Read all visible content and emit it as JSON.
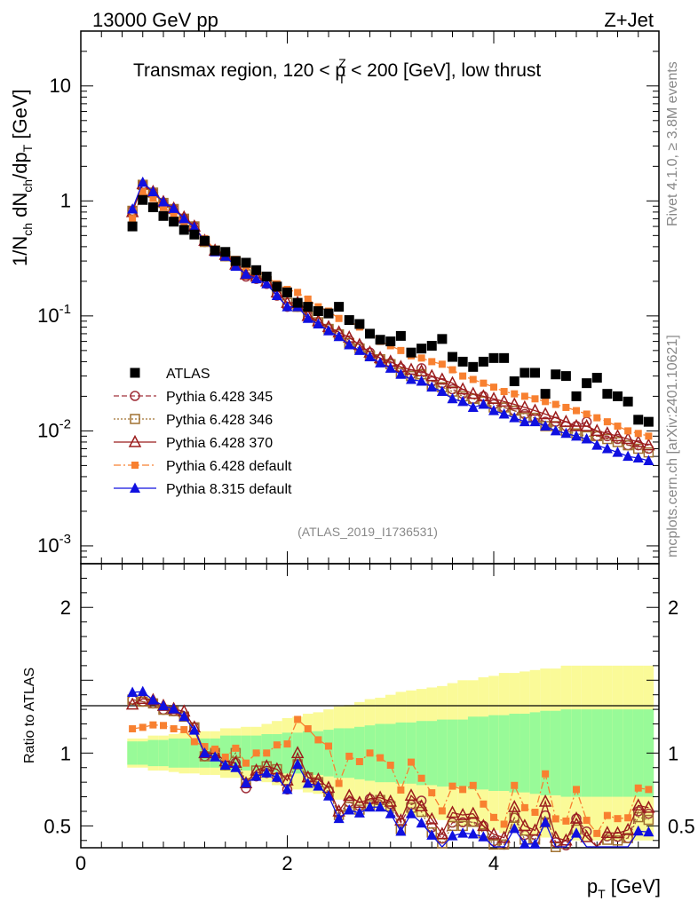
{
  "header": {
    "left": "13000 GeV pp",
    "right": "Z+Jet"
  },
  "title": {
    "pre": "Transmax region, 120 < p",
    "sup": "Z",
    "sub": "T",
    "post": " < 200 [GeV], low thrust"
  },
  "side": {
    "rivet": "Rivet 4.1.0, ≥ 3.8M events",
    "mcplots": "mcplots.cern.ch [arXiv:2401.10621]"
  },
  "analysis_id": "(ATLAS_2019_I1736531)",
  "ylabel_main": {
    "a": "1/N",
    "a_sub": "ch",
    "b": " dN",
    "b_sub": "ch",
    "c": "/dp",
    "c_sub": "T",
    "d": " [GeV]"
  },
  "ylabel_ratio": "Ratio to ATLAS",
  "xlabel": {
    "a": "p",
    "a_sub": "T",
    "b": " [GeV]"
  },
  "colors": {
    "atlas": "#000000",
    "p345": "#a0303a",
    "p346": "#a07030",
    "p370": "#9b1c1c",
    "p6def": "#f88030",
    "p8def": "#1010e0",
    "band_inner": "#98fa98",
    "band_outer": "#fafa98"
  },
  "chart_data": {
    "type": "scatter",
    "title": "Transmax region, 120 < pT^Z < 200 [GeV], low thrust",
    "xlabel": "pT [GeV]",
    "ylabel": "1/Nch dNch/dpT [GeV]",
    "xlim": [
      0,
      5.6
    ],
    "ylim": [
      0.0007,
      30
    ],
    "yscale": "log",
    "ratio_ylim": [
      0.35,
      2.3
    ],
    "x_ticks": [
      "0",
      "2",
      "4"
    ],
    "main_y_ticks": [
      "10",
      "1",
      "10^-1",
      "10^-2",
      "10^-3"
    ],
    "ratio_y_ticks": [
      "2",
      "1",
      "0.5"
    ],
    "legend": [
      "ATLAS",
      "Pythia 6.428 345",
      "Pythia 6.428 346",
      "Pythia 6.428 370",
      "Pythia 6.428 default",
      "Pythia 8.315 default"
    ],
    "x": [
      0.5,
      0.6,
      0.7,
      0.8,
      0.9,
      1.0,
      1.1,
      1.2,
      1.3,
      1.4,
      1.5,
      1.6,
      1.7,
      1.8,
      1.9,
      2.0,
      2.1,
      2.2,
      2.3,
      2.4,
      2.5,
      2.6,
      2.7,
      2.8,
      2.9,
      3.0,
      3.1,
      3.2,
      3.3,
      3.4,
      3.5,
      3.6,
      3.7,
      3.8,
      3.9,
      4.0,
      4.1,
      4.2,
      4.3,
      4.4,
      4.5,
      4.6,
      4.7,
      4.8,
      4.9,
      5.0,
      5.1,
      5.2,
      5.3,
      5.4,
      5.5
    ],
    "series": [
      {
        "name": "ATLAS",
        "values": [
          0.6,
          1.02,
          0.88,
          0.74,
          0.66,
          0.56,
          0.51,
          0.45,
          0.37,
          0.36,
          0.3,
          0.29,
          0.25,
          0.22,
          0.18,
          0.16,
          0.13,
          0.12,
          0.11,
          0.105,
          0.12,
          0.092,
          0.085,
          0.07,
          0.062,
          0.06,
          0.067,
          0.048,
          0.052,
          0.055,
          0.063,
          0.044,
          0.04,
          0.036,
          0.04,
          0.043,
          0.043,
          0.027,
          0.032,
          0.032,
          0.021,
          0.031,
          0.03,
          0.02,
          0.026,
          0.029,
          0.021,
          0.02,
          0.018,
          0.0125,
          0.012
        ]
      },
      {
        "name": "Pythia 6.428 345",
        "values": [
          0.82,
          1.38,
          1.18,
          0.96,
          0.85,
          0.7,
          0.6,
          0.44,
          0.37,
          0.33,
          0.28,
          0.22,
          0.21,
          0.19,
          0.15,
          0.12,
          0.12,
          0.1,
          0.087,
          0.078,
          0.07,
          0.061,
          0.054,
          0.048,
          0.042,
          0.039,
          0.035,
          0.031,
          0.035,
          0.027,
          0.026,
          0.023,
          0.021,
          0.019,
          0.02,
          0.017,
          0.016,
          0.015,
          0.014,
          0.013,
          0.012,
          0.012,
          0.011,
          0.011,
          0.012,
          0.009,
          0.009,
          0.0085,
          0.0075,
          0.0075,
          0.007
        ]
      },
      {
        "name": "Pythia 6.428 346",
        "values": [
          0.82,
          1.38,
          1.18,
          0.96,
          0.85,
          0.7,
          0.6,
          0.44,
          0.37,
          0.33,
          0.3,
          0.23,
          0.22,
          0.2,
          0.16,
          0.13,
          0.12,
          0.1,
          0.088,
          0.077,
          0.069,
          0.058,
          0.052,
          0.045,
          0.042,
          0.038,
          0.032,
          0.03,
          0.031,
          0.025,
          0.024,
          0.022,
          0.02,
          0.019,
          0.018,
          0.016,
          0.016,
          0.015,
          0.013,
          0.013,
          0.011,
          0.011,
          0.01,
          0.0095,
          0.009,
          0.009,
          0.0085,
          0.008,
          0.0075,
          0.007,
          0.0065
        ]
      },
      {
        "name": "Pythia 6.428 370",
        "values": [
          0.8,
          1.4,
          1.2,
          0.98,
          0.86,
          0.72,
          0.6,
          0.45,
          0.37,
          0.34,
          0.28,
          0.23,
          0.22,
          0.2,
          0.16,
          0.13,
          0.13,
          0.1,
          0.09,
          0.08,
          0.072,
          0.065,
          0.056,
          0.048,
          0.043,
          0.04,
          0.036,
          0.034,
          0.033,
          0.03,
          0.028,
          0.026,
          0.023,
          0.021,
          0.02,
          0.019,
          0.018,
          0.017,
          0.016,
          0.015,
          0.014,
          0.013,
          0.012,
          0.011,
          0.011,
          0.01,
          0.0095,
          0.009,
          0.0085,
          0.008,
          0.0075
        ]
      },
      {
        "name": "Pythia 6.428 default",
        "values": [
          0.7,
          1.2,
          1.05,
          0.88,
          0.77,
          0.65,
          0.55,
          0.47,
          0.38,
          0.35,
          0.31,
          0.27,
          0.25,
          0.22,
          0.19,
          0.17,
          0.16,
          0.14,
          0.12,
          0.11,
          0.095,
          0.09,
          0.08,
          0.07,
          0.06,
          0.055,
          0.05,
          0.045,
          0.043,
          0.04,
          0.038,
          0.034,
          0.03,
          0.028,
          0.026,
          0.024,
          0.022,
          0.021,
          0.02,
          0.019,
          0.018,
          0.017,
          0.016,
          0.015,
          0.014,
          0.013,
          0.012,
          0.011,
          0.01,
          0.0095,
          0.009
        ]
      },
      {
        "name": "Pythia 8.315 default",
        "values": [
          0.85,
          1.45,
          1.2,
          0.98,
          0.86,
          0.7,
          0.59,
          0.45,
          0.36,
          0.33,
          0.27,
          0.23,
          0.21,
          0.19,
          0.15,
          0.12,
          0.12,
          0.095,
          0.085,
          0.074,
          0.066,
          0.056,
          0.05,
          0.044,
          0.039,
          0.035,
          0.031,
          0.028,
          0.027,
          0.024,
          0.022,
          0.019,
          0.018,
          0.016,
          0.017,
          0.015,
          0.014,
          0.013,
          0.012,
          0.012,
          0.011,
          0.01,
          0.0095,
          0.009,
          0.0085,
          0.0075,
          0.007,
          0.0065,
          0.006,
          0.0058,
          0.0055
        ]
      }
    ],
    "ratio": {
      "band_inner": [
        0.08,
        0.08,
        0.09,
        0.09,
        0.1,
        0.1,
        0.1,
        0.1,
        0.1,
        0.12,
        0.12,
        0.12,
        0.12,
        0.13,
        0.13,
        0.14,
        0.14,
        0.15,
        0.15,
        0.16,
        0.17,
        0.17,
        0.18,
        0.19,
        0.2,
        0.2,
        0.21,
        0.21,
        0.22,
        0.22,
        0.23,
        0.23,
        0.23,
        0.25,
        0.25,
        0.26,
        0.26,
        0.27,
        0.27,
        0.28,
        0.29,
        0.29,
        0.3,
        0.3,
        0.3,
        0.3,
        0.3,
        0.3,
        0.3,
        0.3,
        0.3
      ],
      "band_outer": [
        0.1,
        0.1,
        0.12,
        0.12,
        0.13,
        0.14,
        0.14,
        0.15,
        0.15,
        0.17,
        0.17,
        0.18,
        0.18,
        0.2,
        0.22,
        0.24,
        0.25,
        0.27,
        0.28,
        0.3,
        0.32,
        0.33,
        0.35,
        0.37,
        0.38,
        0.4,
        0.42,
        0.43,
        0.44,
        0.45,
        0.46,
        0.48,
        0.5,
        0.5,
        0.52,
        0.53,
        0.55,
        0.55,
        0.56,
        0.57,
        0.58,
        0.58,
        0.6,
        0.6,
        0.6,
        0.6,
        0.6,
        0.6,
        0.6,
        0.6,
        0.6
      ]
    }
  }
}
